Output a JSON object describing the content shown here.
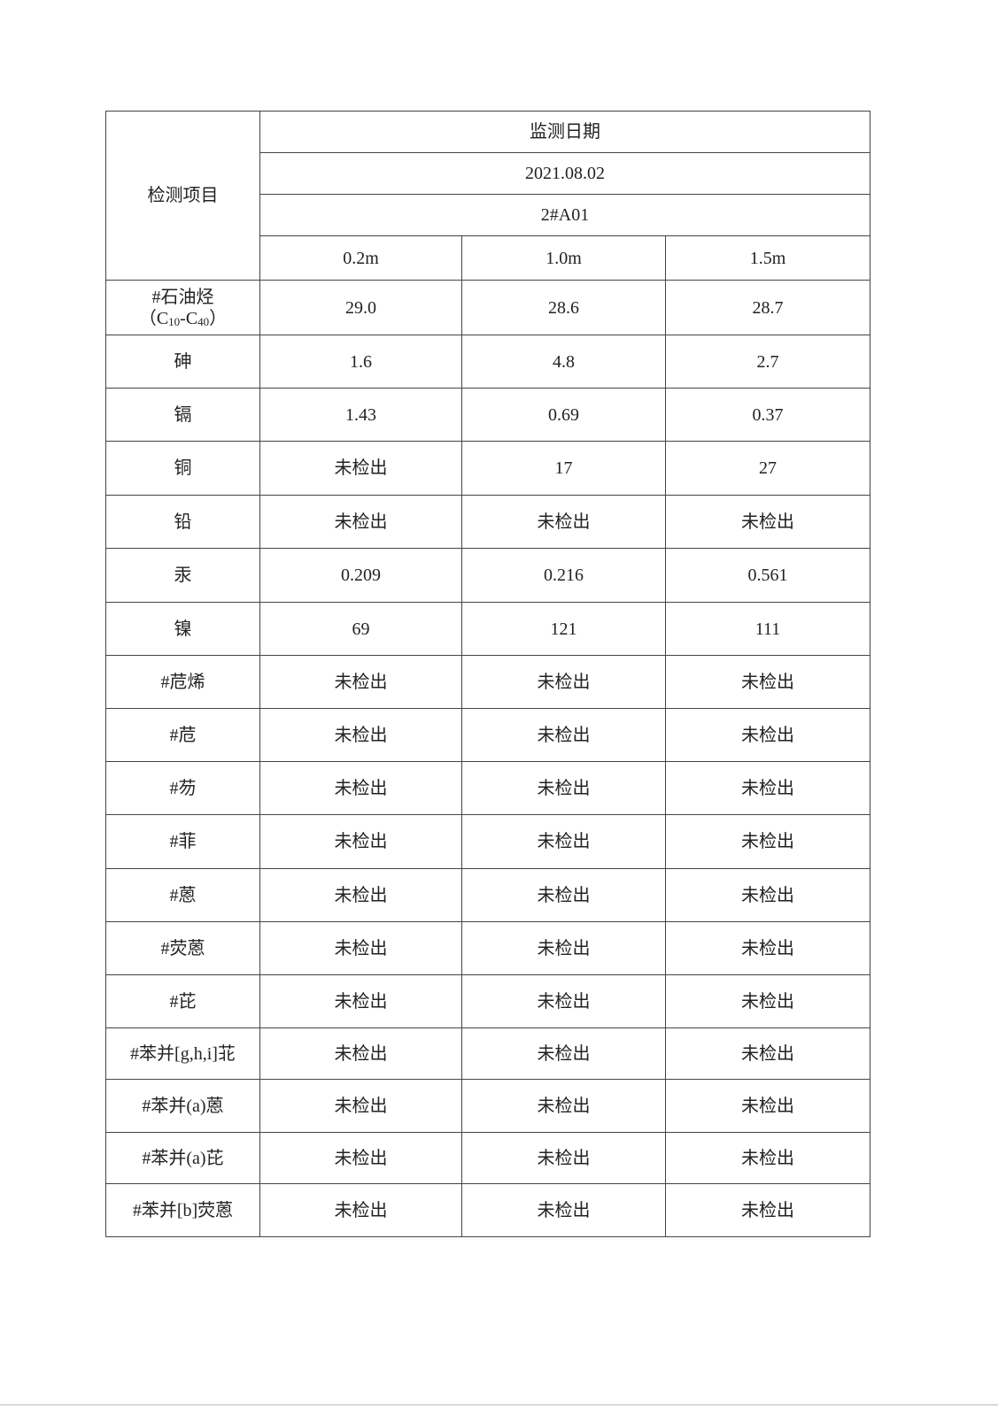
{
  "table": {
    "header_item": "检测项目",
    "header_date_label": "监测日期",
    "date": "2021.08.02",
    "site": "2#A01",
    "depths": [
      "0.2m",
      "1.0m",
      "1.5m"
    ],
    "first_row": {
      "item_line1": "#石油烃",
      "item_paren_open": "（C",
      "sub1": "10",
      "dash_c": "-C",
      "sub2": "40",
      "item_paren_close": "）",
      "values": [
        "29.0",
        "28.6",
        "28.7"
      ]
    },
    "rows": [
      {
        "item": "砷",
        "values": [
          "1.6",
          "4.8",
          "2.7"
        ]
      },
      {
        "item": "镉",
        "values": [
          "1.43",
          "0.69",
          "0.37"
        ]
      },
      {
        "item": "铜",
        "values": [
          "未检出",
          "17",
          "27"
        ]
      },
      {
        "item": "铅",
        "values": [
          "未检出",
          "未检出",
          "未检出"
        ]
      },
      {
        "item": "汞",
        "values": [
          "0.209",
          "0.216",
          "0.561"
        ]
      },
      {
        "item": "镍",
        "values": [
          "69",
          "121",
          "111"
        ]
      },
      {
        "item": "#苊烯",
        "values": [
          "未检出",
          "未检出",
          "未检出"
        ]
      },
      {
        "item": "#苊",
        "values": [
          "未检出",
          "未检出",
          "未检出"
        ]
      },
      {
        "item": "#芴",
        "values": [
          "未检出",
          "未检出",
          "未检出"
        ]
      },
      {
        "item": "#菲",
        "values": [
          "未检出",
          "未检出",
          "未检出"
        ]
      },
      {
        "item": "#蒽",
        "values": [
          "未检出",
          "未检出",
          "未检出"
        ]
      },
      {
        "item": "#荧蒽",
        "values": [
          "未检出",
          "未检出",
          "未检出"
        ]
      },
      {
        "item": "#芘",
        "values": [
          "未检出",
          "未检出",
          "未检出"
        ]
      },
      {
        "item": "#苯并[g,h,i]苝",
        "values": [
          "未检出",
          "未检出",
          "未检出"
        ]
      },
      {
        "item": "#苯并(a)蒽",
        "values": [
          "未检出",
          "未检出",
          "未检出"
        ]
      },
      {
        "item": "#苯并(a)芘",
        "values": [
          "未检出",
          "未检出",
          "未检出"
        ]
      },
      {
        "item": "#苯并[b]荧蒽",
        "values": [
          "未检出",
          "未检出",
          "未检出"
        ]
      }
    ]
  }
}
